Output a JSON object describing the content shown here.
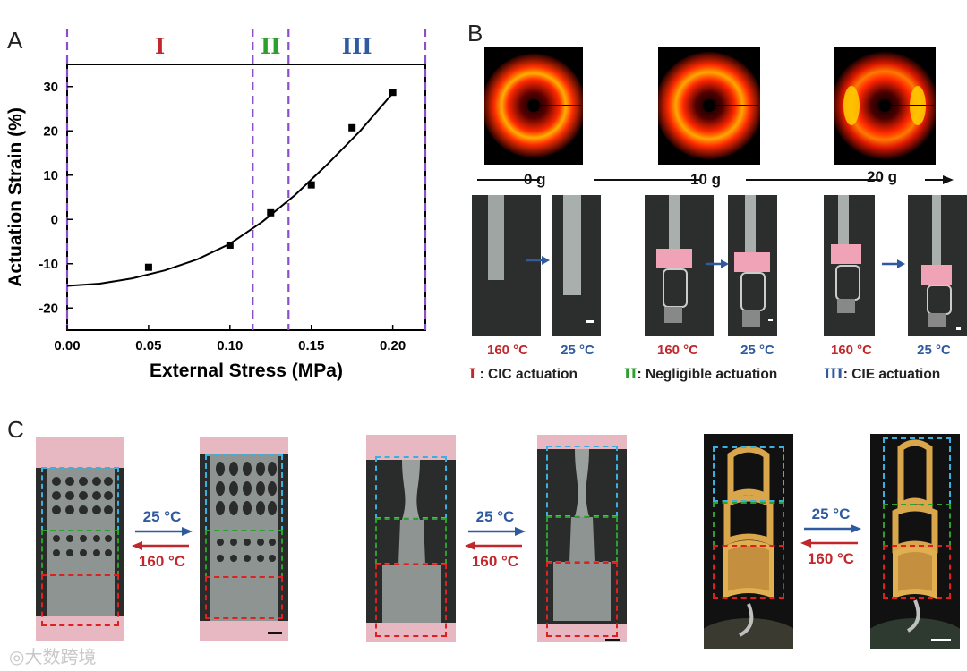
{
  "panels": {
    "a": "A",
    "b": "B",
    "c": "C"
  },
  "chart_data": {
    "type": "scatter",
    "title": "",
    "xlabel": "External Stress (MPa)",
    "ylabel": "Actuation Strain (%)",
    "xlim": [
      0.0,
      0.22
    ],
    "ylim": [
      -25,
      35
    ],
    "xticks": [
      "0.00",
      "0.05",
      "0.10",
      "0.15",
      "0.20"
    ],
    "yticks": [
      "-20",
      "-10",
      "0",
      "10",
      "20",
      "30"
    ],
    "points": [
      {
        "x": 0.05,
        "y": -10.8
      },
      {
        "x": 0.1,
        "y": -5.8
      },
      {
        "x": 0.125,
        "y": 1.5
      },
      {
        "x": 0.15,
        "y": 7.8
      },
      {
        "x": 0.175,
        "y": 20.7
      },
      {
        "x": 0.2,
        "y": 28.7
      }
    ],
    "fit_curve": [
      {
        "x": 0.0,
        "y": -15.0
      },
      {
        "x": 0.02,
        "y": -14.5
      },
      {
        "x": 0.04,
        "y": -13.3
      },
      {
        "x": 0.06,
        "y": -11.5
      },
      {
        "x": 0.08,
        "y": -9.0
      },
      {
        "x": 0.1,
        "y": -5.5
      },
      {
        "x": 0.12,
        "y": -0.5
      },
      {
        "x": 0.14,
        "y": 5.5
      },
      {
        "x": 0.16,
        "y": 12.5
      },
      {
        "x": 0.18,
        "y": 20.0
      },
      {
        "x": 0.2,
        "y": 28.5
      }
    ],
    "region_boundaries": [
      0.0,
      0.114,
      0.136,
      0.22
    ],
    "regions": [
      {
        "label": "I",
        "color": "#c0282d"
      },
      {
        "label": "II",
        "color": "#2ca02c"
      },
      {
        "label": "III",
        "color": "#2f5aa0"
      }
    ]
  },
  "panel_b": {
    "loads": [
      "0 g",
      "10 g",
      "20 g"
    ],
    "temps": [
      {
        "hot": "160 °C",
        "cold": "25 °C"
      },
      {
        "hot": "160 °C",
        "cold": "25 °C"
      },
      {
        "hot": "160 °C",
        "cold": "25 °C"
      }
    ],
    "legend": [
      {
        "roman": "I",
        "text": " : CIC actuation",
        "color": "#c0282d"
      },
      {
        "roman": "II",
        "text": ": Negligible actuation",
        "color": "#2ca02c"
      },
      {
        "roman": "III",
        "text": ": CIE actuation",
        "color": "#2f5aa0"
      }
    ]
  },
  "panel_c": {
    "arrows": [
      {
        "forward": "25 °C",
        "backward": "160 °C"
      },
      {
        "forward": "25 °C",
        "backward": "160 °C"
      },
      {
        "forward": "25 °C",
        "backward": "160 °C"
      }
    ]
  },
  "watermark": "大数跨境",
  "colors": {
    "red": "#c0282d",
    "blue": "#2f5aa0",
    "green": "#2ca02c",
    "purple": "#8a4fc9",
    "cyan": "#3ab0e0"
  }
}
